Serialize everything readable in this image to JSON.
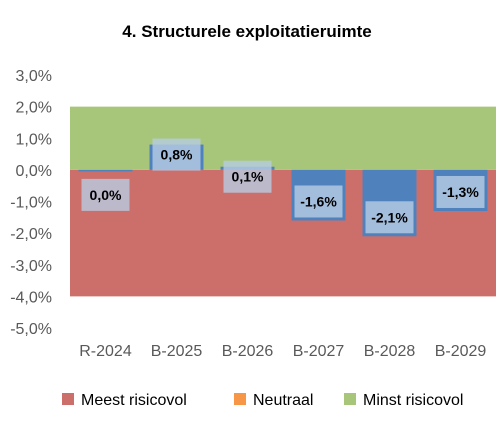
{
  "chart_data": {
    "type": "bar",
    "title": "4. Structurele exploitatieruimte",
    "categories": [
      "R-2024",
      "B-2025",
      "B-2026",
      "B-2027",
      "B-2028",
      "B-2029"
    ],
    "values": [
      0.0,
      0.8,
      0.1,
      -1.6,
      -2.1,
      -1.3
    ],
    "value_labels": [
      "0,0%",
      "0,8%",
      "0,1%",
      "-1,6%",
      "-2,1%",
      "-1,3%"
    ],
    "series_color": "#4f81bd",
    "label_box_color": "#b8cce4",
    "ylim": [
      -5.0,
      3.0
    ],
    "yticks": [
      3.0,
      2.0,
      1.0,
      0.0,
      -1.0,
      -2.0,
      -3.0,
      -4.0,
      -5.0
    ],
    "ytick_labels": [
      "3,0%",
      "2,0%",
      "1,0%",
      "0,0%",
      "-1,0%",
      "-2,0%",
      "-3,0%",
      "-4,0%",
      "-5,0%"
    ],
    "grid": false,
    "bands": [
      {
        "name": "Meest risicovol",
        "from": -4.0,
        "to": 0.0,
        "color": "#cc6f6a"
      },
      {
        "name": "Neutraal",
        "from": 0.0,
        "to": 0.0,
        "color": "#f79646"
      },
      {
        "name": "Minst risicovol",
        "from": 0.0,
        "to": 2.0,
        "color": "#a7c67a"
      }
    ],
    "legend": {
      "placement": "bottom",
      "entries": [
        {
          "label": "Meest risicovol",
          "color": "#cc6f6a"
        },
        {
          "label": "Neutraal",
          "color": "#f79646"
        },
        {
          "label": "Minst risicovol",
          "color": "#a7c67a"
        }
      ]
    }
  }
}
